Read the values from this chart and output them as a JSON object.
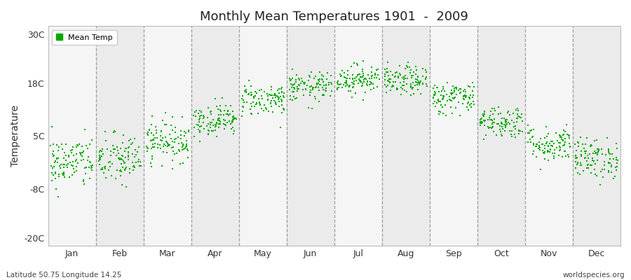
{
  "title": "Monthly Mean Temperatures 1901  -  2009",
  "ylabel": "Temperature",
  "yticks": [
    -20,
    -8,
    5,
    18,
    30
  ],
  "ytick_labels": [
    "-20C",
    "-8C",
    "5C",
    "18C",
    "30C"
  ],
  "ylim": [
    -22,
    32
  ],
  "months": [
    "Jan",
    "Feb",
    "Mar",
    "Apr",
    "May",
    "Jun",
    "Jul",
    "Aug",
    "Sep",
    "Oct",
    "Nov",
    "Dec"
  ],
  "dot_color": "#00AA00",
  "bg_color": "#EBEBEB",
  "fig_bg_color": "#FFFFFF",
  "legend_label": "Mean Temp",
  "footer_left": "Latitude 50.75 Longitude 14.25",
  "footer_right": "worldspecies.org",
  "num_years": 109,
  "monthly_means": [
    -1.5,
    -0.8,
    3.8,
    9.0,
    14.0,
    17.0,
    19.0,
    18.5,
    14.5,
    8.5,
    3.0,
    -0.5
  ],
  "monthly_stds": [
    3.2,
    3.2,
    2.5,
    2.0,
    2.0,
    1.8,
    1.8,
    1.8,
    2.0,
    2.0,
    2.2,
    2.5
  ],
  "seed": 42
}
